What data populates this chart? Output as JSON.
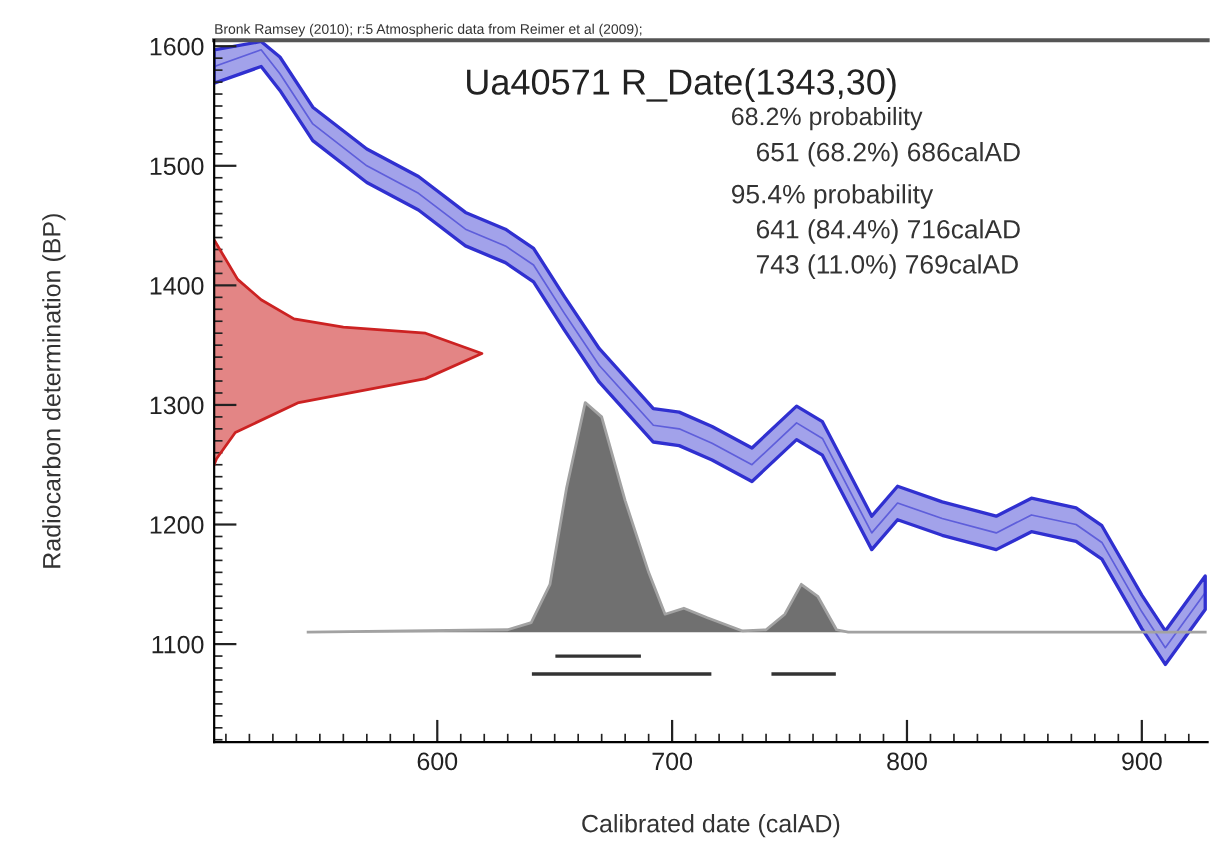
{
  "chart_data": {
    "type": "line",
    "title": "Ua40571 R_Date(1343,30)",
    "xlabel": "Calibrated date (calAD)",
    "ylabel": "Radiocarbon determination (BP)",
    "xlim": [
      505,
      928
    ],
    "ylim": [
      1018,
      1605
    ],
    "xticks": [
      600,
      700,
      800,
      900
    ],
    "yticks": [
      1100,
      1200,
      1300,
      1400,
      1500,
      1600
    ],
    "grid": false,
    "legend": false,
    "annotations": [
      "Bronk Ramsey (2010); r:5 Atmospheric data from Reimer et al (2009);",
      "68.2% probability",
      "651 (68.2%) 686calAD",
      "95.4% probability",
      "641 (84.4%) 716calAD",
      "743 (11.0%) 769calAD"
    ],
    "series": [
      {
        "color": "#3030d0",
        "x": [
          505,
          525,
          533,
          547,
          570,
          592,
          612,
          629,
          641,
          654,
          669,
          692,
          703,
          717,
          734,
          753,
          764,
          785,
          796,
          815,
          838,
          853,
          872,
          883,
          900,
          910,
          927
        ],
        "values": [
          1583,
          1597,
          1577,
          1535,
          1500,
          1477,
          1447,
          1433,
          1417,
          1377,
          1333,
          1283,
          1280,
          1268,
          1250,
          1285,
          1272,
          1193,
          1218,
          1205,
          1193,
          1208,
          1200,
          1185,
          1127,
          1097,
          1143
        ],
        "lower": [
          1569,
          1583,
          1563,
          1521,
          1486,
          1463,
          1433,
          1419,
          1403,
          1363,
          1319,
          1269,
          1266,
          1254,
          1236,
          1271,
          1258,
          1179,
          1204,
          1191,
          1179,
          1194,
          1186,
          1171,
          1113,
          1083,
          1129
        ],
        "upper": [
          1597,
          1604,
          1591,
          1549,
          1514,
          1491,
          1461,
          1447,
          1431,
          1391,
          1347,
          1297,
          1294,
          1282,
          1264,
          1299,
          1286,
          1207,
          1232,
          1219,
          1207,
          1222,
          1214,
          1199,
          1141,
          1111,
          1157
        ]
      },
      {
        "type": "area",
        "color": "#cc2222",
        "x": [
          505,
          515,
          525,
          539,
          560,
          595,
          619,
          595,
          541,
          514,
          506,
          505
        ],
        "values": [
          1438,
          1405,
          1388,
          1372,
          1365,
          1360,
          1343,
          1322,
          1302,
          1277,
          1255,
          1250
        ]
      },
      {
        "type": "area",
        "color": "#707070",
        "x": [
          545,
          630,
          640,
          648,
          655,
          663,
          670,
          680,
          690,
          697,
          705,
          715,
          730,
          740,
          748,
          755,
          762,
          770,
          775,
          927
        ],
        "values": [
          1110,
          1112,
          1118,
          1150,
          1230,
          1302,
          1290,
          1220,
          1160,
          1125,
          1130,
          1122,
          1111,
          1112,
          1125,
          1150,
          1140,
          1112,
          1110,
          1110
        ]
      },
      {
        "type": "line",
        "color": "#333333",
        "x": [
          651,
          686
        ],
        "values": [
          1090,
          1090
        ]
      },
      {
        "type": "line",
        "color": "#333333",
        "x": [
          641,
          716
        ],
        "values": [
          1075,
          1075
        ]
      },
      {
        "type": "line",
        "color": "#333333",
        "x": [
          743,
          769
        ],
        "values": [
          1075,
          1075
        ]
      }
    ]
  }
}
